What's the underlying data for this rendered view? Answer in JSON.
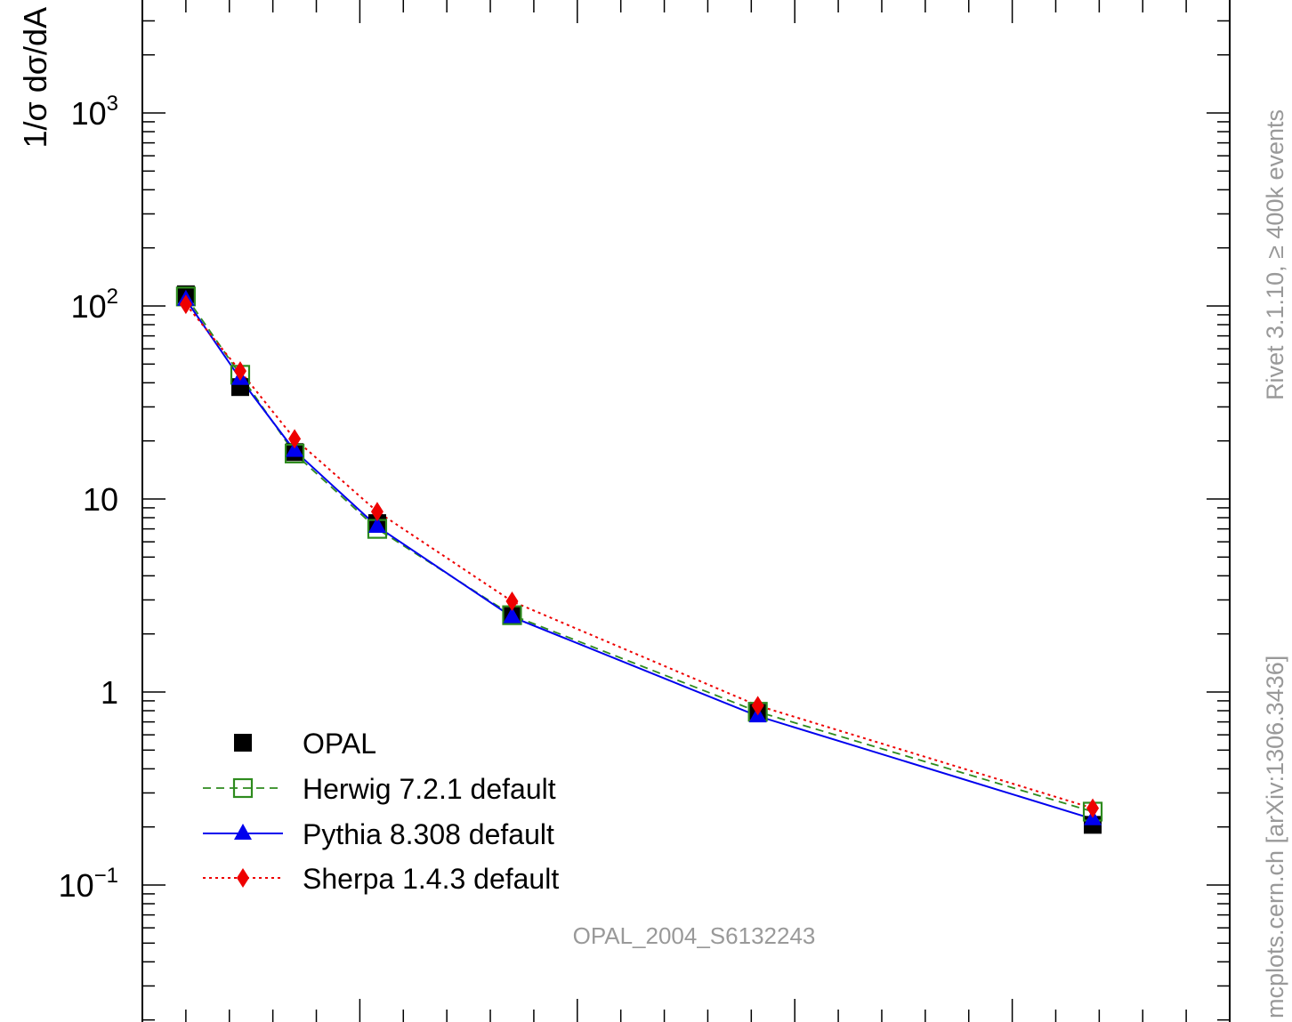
{
  "chart_data": {
    "type": "line",
    "title": "",
    "xlabel": "",
    "ylabel": "1/σ dσ/dA",
    "ylog": true,
    "ylim": [
      0.025,
      4000
    ],
    "xlim": [
      0.0,
      0.5
    ],
    "y_ticks": [
      {
        "value": 0.1,
        "base": "10",
        "exp": "−1"
      },
      {
        "value": 1,
        "base": "1",
        "exp": ""
      },
      {
        "value": 10,
        "base": "10",
        "exp": ""
      },
      {
        "value": 100,
        "base": "10",
        "exp": "2"
      },
      {
        "value": 1000,
        "base": "10",
        "exp": "3"
      }
    ],
    "x": [
      0.02,
      0.045,
      0.07,
      0.108,
      0.17,
      0.283,
      0.437
    ],
    "series": [
      {
        "name": "OPAL",
        "style": "data",
        "color": "#000000",
        "values": [
          115,
          38,
          17.5,
          7.5,
          2.5,
          0.78,
          0.205
        ]
      },
      {
        "name": "Herwig 7.2.1 default",
        "style": "dashed-open-square",
        "color": "#2e8b1e",
        "values": [
          112,
          44,
          17.2,
          7.0,
          2.5,
          0.79,
          0.24
        ]
      },
      {
        "name": "Pythia 8.308 default",
        "style": "solid-triangle",
        "color": "#0000ee",
        "values": [
          108,
          42,
          17.8,
          7.2,
          2.45,
          0.75,
          0.22
        ]
      },
      {
        "name": "Sherpa 1.4.3 default",
        "style": "dotted-diamond",
        "color": "#ee0000",
        "values": [
          102,
          46,
          20.5,
          8.6,
          2.95,
          0.85,
          0.25
        ]
      }
    ],
    "legend_position": "bottom-left",
    "analysis_label": "OPAL_2004_S6132243",
    "side_label_top": "Rivet 3.1.10, ≥ 400k events",
    "side_label_bottom": "mcplots.cern.ch [arXiv:1306.3436]"
  }
}
